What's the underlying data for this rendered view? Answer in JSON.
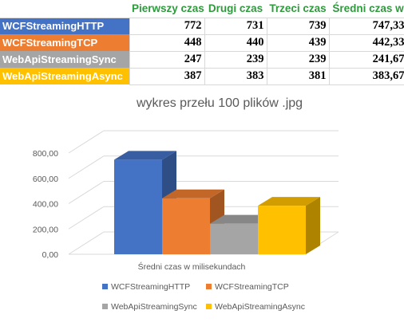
{
  "table": {
    "headers": [
      "",
      "Pierwszy czas",
      "Drugi czas",
      "Trzeci czas",
      "Średni czas w"
    ],
    "rows": [
      {
        "name": "WCFStreamingHTTP",
        "color": "#4472c4",
        "values": [
          "772",
          "731",
          "739",
          "747,33"
        ]
      },
      {
        "name": "WCFStreamingTCP",
        "color": "#ed7d31",
        "values": [
          "448",
          "440",
          "439",
          "442,33"
        ]
      },
      {
        "name": "WebApiStreamingSync",
        "color": "#a5a5a5",
        "values": [
          "247",
          "239",
          "239",
          "241,67"
        ]
      },
      {
        "name": "WebApiStreamingAsync",
        "color": "#ffc000",
        "values": [
          "387",
          "383",
          "381",
          "383,67"
        ]
      }
    ]
  },
  "chart_data": {
    "type": "bar",
    "title": "wykres przełu 100 plików .jpg",
    "categories": [
      "Średni czas w milisekundach"
    ],
    "series": [
      {
        "name": "WCFStreamingHTTP",
        "values": [
          747.33
        ],
        "color": "#4472c4"
      },
      {
        "name": "WCFStreamingTCP",
        "values": [
          442.33
        ],
        "color": "#ed7d31"
      },
      {
        "name": "WebApiStreamingSync",
        "values": [
          241.67
        ],
        "color": "#a5a5a5"
      },
      {
        "name": "WebApiStreamingAsync",
        "values": [
          383.67
        ],
        "color": "#ffc000"
      }
    ],
    "ylim": [
      0,
      800
    ],
    "yticks": [
      "0,00",
      "200,00",
      "400,00",
      "600,00",
      "800,00"
    ],
    "grid": true,
    "legend": "bottom",
    "three_d": true
  }
}
